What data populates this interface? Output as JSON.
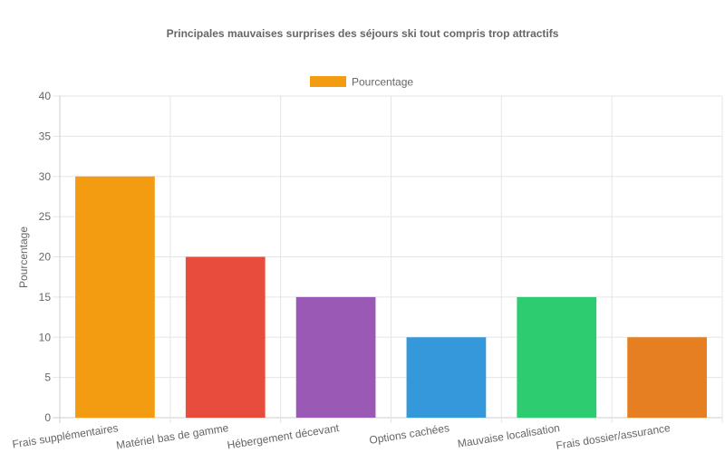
{
  "chart_data": {
    "type": "bar",
    "title": "Principales mauvaises surprises des séjours ski tout compris trop attractifs",
    "ylabel": "Pourcentage",
    "xlabel": "",
    "ylim": [
      0,
      40
    ],
    "ytick_step": 5,
    "grid": true,
    "legend_position": "top",
    "categories": [
      "Frais supplémentaires",
      "Matériel bas de gamme",
      "Hébergement décevant",
      "Options cachées",
      "Mauvaise localisation",
      "Frais dossier/assurance"
    ],
    "series": [
      {
        "name": "Pourcentage",
        "values": [
          30,
          20,
          15,
          10,
          15,
          10
        ],
        "colors": [
          "#f39c12",
          "#e74c3c",
          "#9b59b6",
          "#3498db",
          "#2ecc71",
          "#e67e22"
        ]
      }
    ]
  }
}
